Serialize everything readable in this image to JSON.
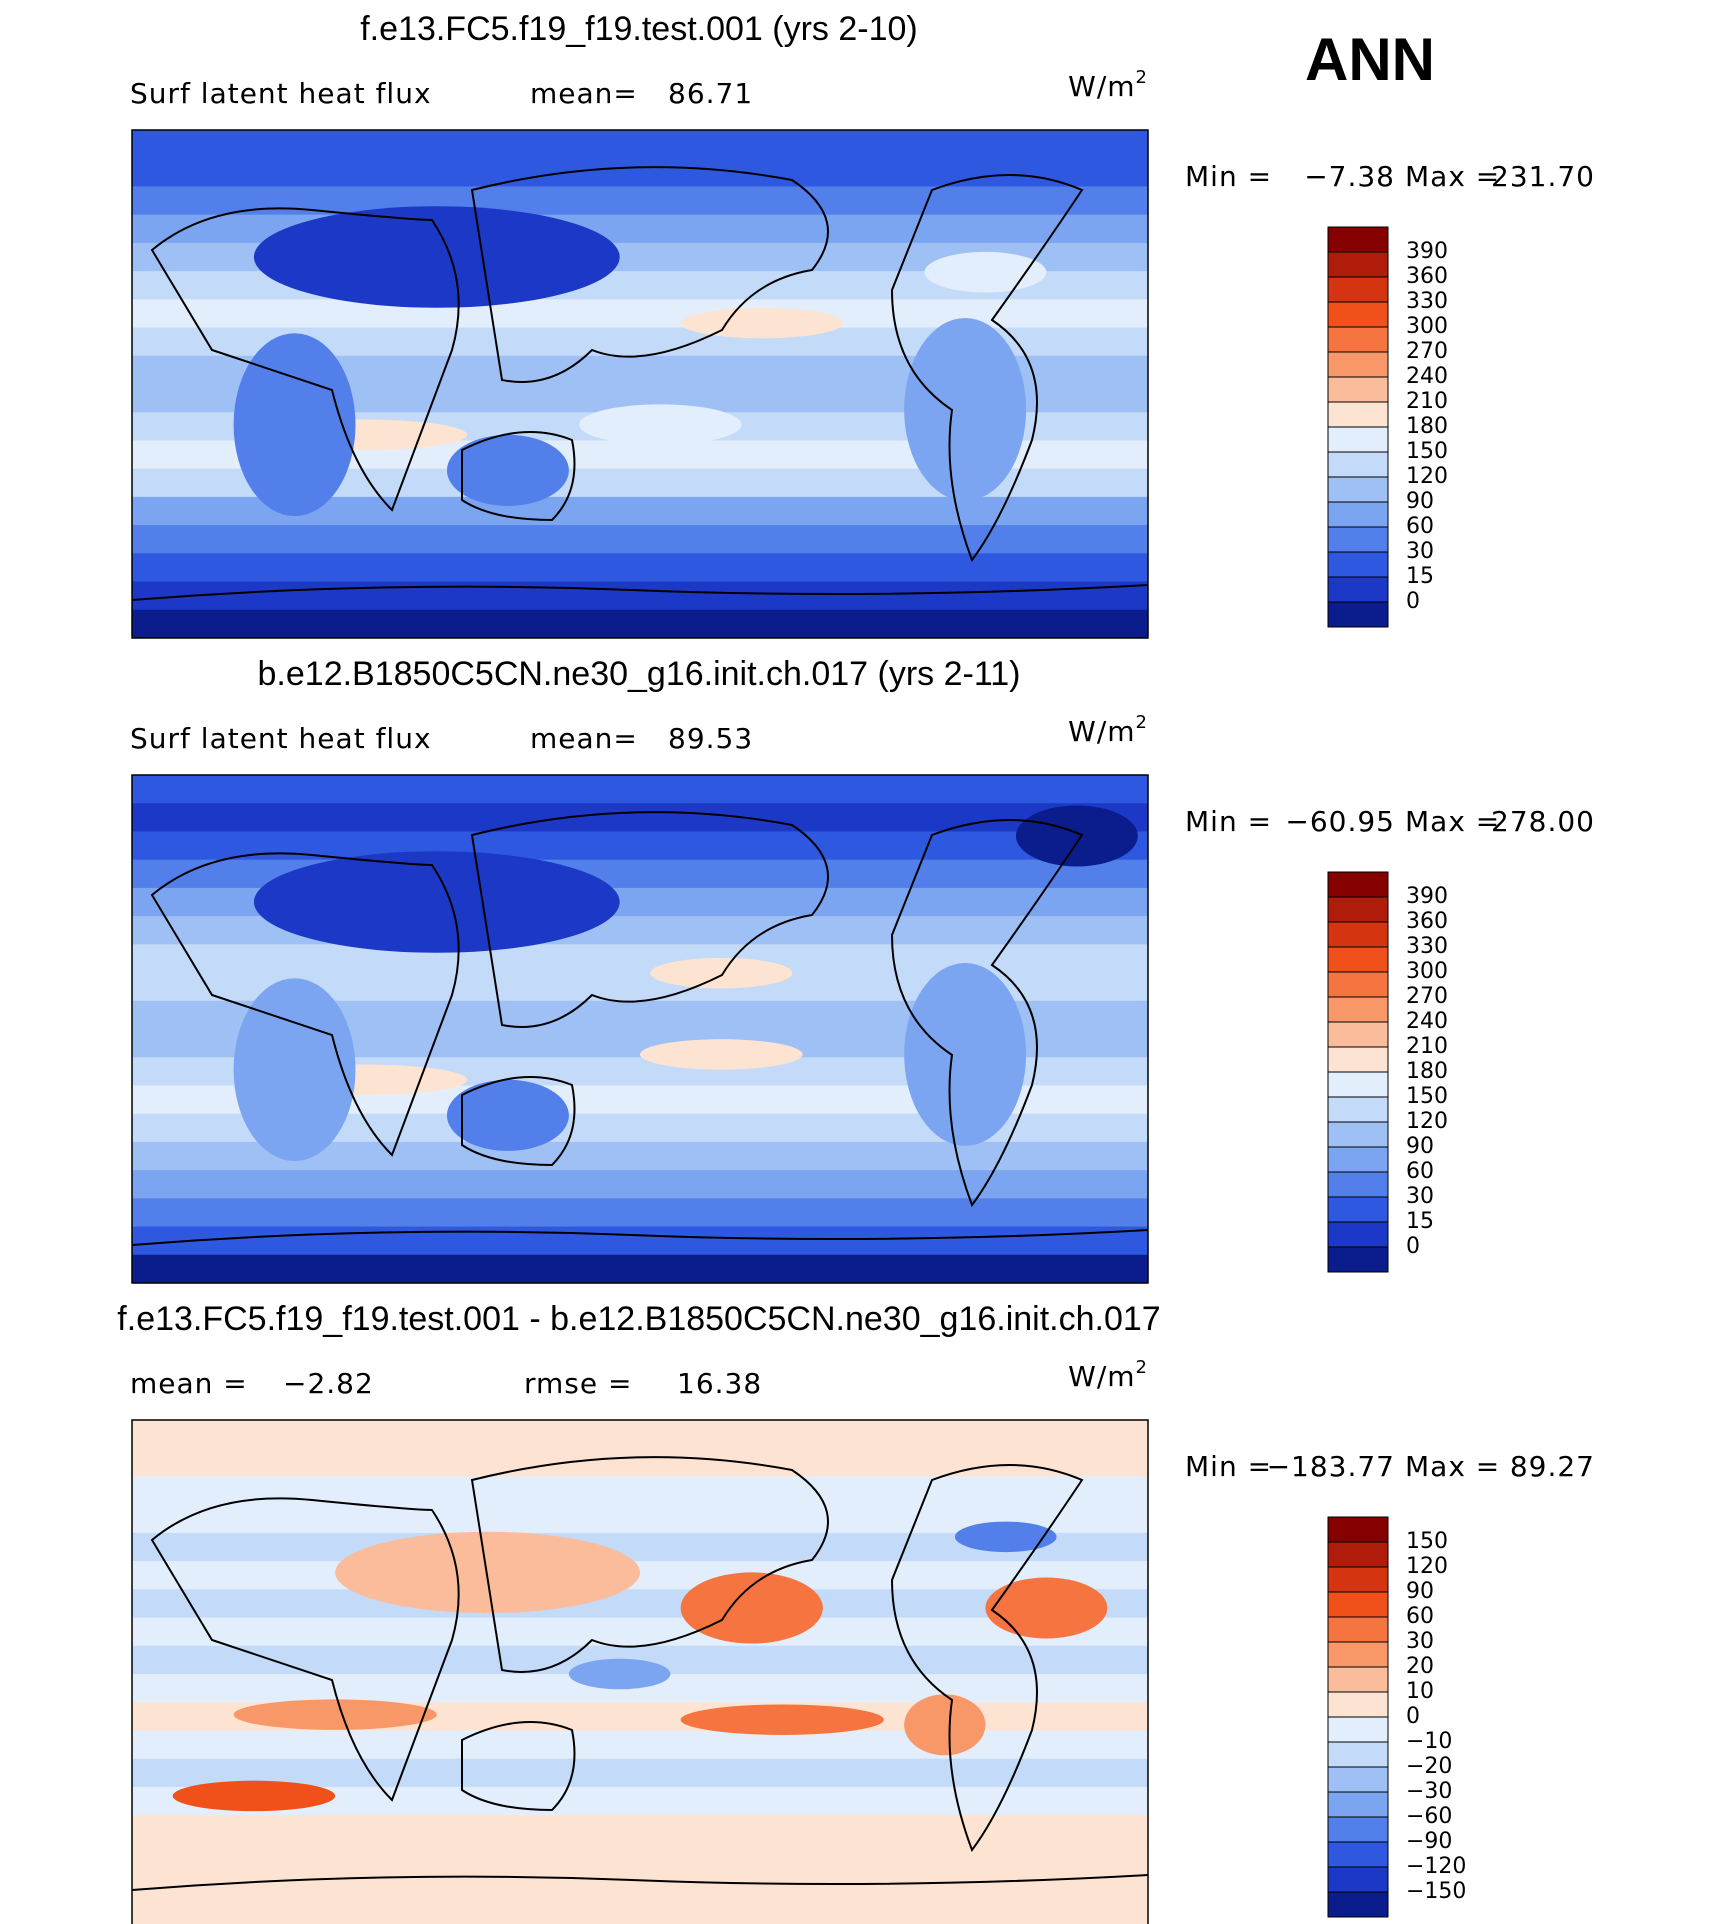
{
  "season": "ANN",
  "panels": [
    {
      "title": "f.e13.FC5.f19_f19.test.001 (yrs 2-10)",
      "subtitle_left": "Surf latent heat flux",
      "stats": [
        {
          "label": "mean=",
          "value": "86.71"
        }
      ],
      "units": "W/m",
      "units_exp": "2",
      "min_label": "Min =",
      "min": "−7.38",
      "max_label": "Max =",
      "max": "231.70",
      "colorbar": {
        "labels": [
          "390",
          "360",
          "330",
          "300",
          "270",
          "240",
          "210",
          "180",
          "150",
          "120",
          "90",
          "60",
          "30",
          "15",
          "0"
        ],
        "colors": [
          "#850000",
          "#b01c0a",
          "#d43510",
          "#f0501a",
          "#f57440",
          "#f89868",
          "#fabc9a",
          "#fde4d2",
          "#e2eefb",
          "#c3daf8",
          "#9fc0f5",
          "#7ca5f1",
          "#527fe9",
          "#2e58df",
          "#1b39c6",
          "#0b1d8d"
        ]
      }
    },
    {
      "title": "b.e12.B1850C5CN.ne30_g16.init.ch.017 (yrs 2-11)",
      "subtitle_left": "Surf latent heat flux",
      "stats": [
        {
          "label": "mean=",
          "value": "89.53"
        }
      ],
      "units": "W/m",
      "units_exp": "2",
      "min_label": "Min =",
      "min": "−60.95",
      "max_label": "Max =",
      "max": "278.00",
      "colorbar": {
        "labels": [
          "390",
          "360",
          "330",
          "300",
          "270",
          "240",
          "210",
          "180",
          "150",
          "120",
          "90",
          "60",
          "30",
          "15",
          "0"
        ],
        "colors": [
          "#850000",
          "#b01c0a",
          "#d43510",
          "#f0501a",
          "#f57440",
          "#f89868",
          "#fabc9a",
          "#fde4d2",
          "#e2eefb",
          "#c3daf8",
          "#9fc0f5",
          "#7ca5f1",
          "#527fe9",
          "#2e58df",
          "#1b39c6",
          "#0b1d8d"
        ]
      }
    },
    {
      "title": "f.e13.FC5.f19_f19.test.001 - b.e12.B1850C5CN.ne30_g16.init.ch.017",
      "stats": [
        {
          "label": "mean =",
          "value": "−2.82"
        },
        {
          "label": "rmse =",
          "value": "16.38"
        }
      ],
      "units": "W/m",
      "units_exp": "2",
      "min_label": "Min =",
      "min": "−183.77",
      "max_label": "Max =",
      "max": "89.27",
      "colorbar": {
        "labels": [
          "150",
          "120",
          "90",
          "60",
          "30",
          "20",
          "10",
          "0",
          "−10",
          "−20",
          "−30",
          "−60",
          "−90",
          "−120",
          "−150"
        ],
        "colors": [
          "#850000",
          "#b01c0a",
          "#d43510",
          "#f0501a",
          "#f57440",
          "#f89868",
          "#fabc9a",
          "#fde4d2",
          "#e2eefb",
          "#c3daf8",
          "#9fc0f5",
          "#7ca5f1",
          "#527fe9",
          "#2e58df",
          "#1b39c6",
          "#0b1d8d"
        ]
      }
    }
  ]
}
